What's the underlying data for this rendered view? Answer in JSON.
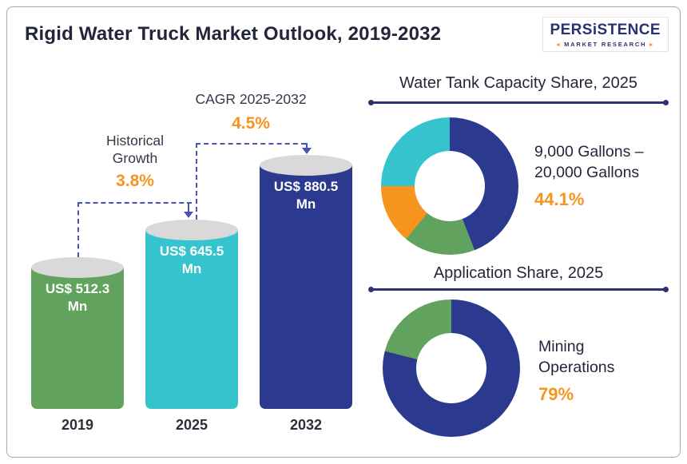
{
  "header": {
    "title": "Rigid Water Truck Market Outlook, 2019-2032",
    "logo": {
      "brand": "PERSiSTENCE",
      "tagline": "MARKET RESEARCH"
    }
  },
  "colors": {
    "navy": "#2b3a8f",
    "teal": "#35c4ce",
    "green": "#61a25e",
    "orange": "#f7941d",
    "dashed_line": "#4653b5",
    "cylinder_top": "#d9d9d9",
    "text_dark": "#23263a"
  },
  "chart_data": [
    {
      "type": "bar",
      "title": "Rigid Water Truck Market Outlook, 2019-2032",
      "categories": [
        "2019",
        "2025",
        "2032"
      ],
      "values": [
        512.3,
        645.5,
        880.5
      ],
      "value_labels": [
        "US$ 512.3 Mn",
        "US$ 645.5 Mn",
        "US$ 880.5 Mn"
      ],
      "unit": "US$ Mn",
      "bar_colors": [
        "#61a25e",
        "#35c4ce",
        "#2b3a8f"
      ],
      "annotations": [
        {
          "label": "Historical Growth",
          "value": "3.8%"
        },
        {
          "label": "CAGR 2025-2032",
          "value": "4.5%"
        }
      ]
    },
    {
      "type": "pie",
      "title": "Water Tank Capacity Share, 2025",
      "donut": true,
      "legend_position": "none",
      "callout": {
        "label": "9,000 Gallons – 20,000 Gallons",
        "value": "44.1%"
      },
      "slices": [
        {
          "name": "9,000 Gallons – 20,000 Gallons",
          "value": 44.1,
          "color": "#2b3a8f"
        },
        {
          "name": "unlabeled-green-segment",
          "value": 16.9,
          "color": "#61a25e"
        },
        {
          "name": "unlabeled-orange-segment",
          "value": 14.0,
          "color": "#f7941d"
        },
        {
          "name": "unlabeled-teal-segment",
          "value": 25.0,
          "color": "#35c4ce"
        }
      ]
    },
    {
      "type": "pie",
      "title": "Application Share, 2025",
      "donut": true,
      "legend_position": "none",
      "callout": {
        "label": "Mining Operations",
        "value": "79%"
      },
      "slices": [
        {
          "name": "Mining Operations",
          "value": 79,
          "color": "#2b3a8f"
        },
        {
          "name": "unlabeled-green-segment",
          "value": 21,
          "color": "#61a25e"
        }
      ]
    }
  ]
}
